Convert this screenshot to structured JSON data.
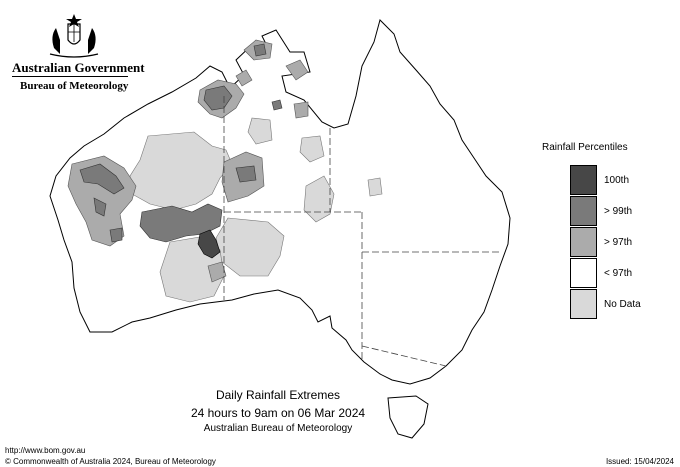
{
  "header": {
    "government": "Australian Government",
    "bureau": "Bureau of Meteorology"
  },
  "map": {
    "title": "Daily Rainfall Extremes",
    "period": "24 hours to 9am on 06 Mar 2024",
    "source": "Australian Bureau of Meteorology",
    "region": "Australia"
  },
  "legend": {
    "title": "Rainfall Percentiles",
    "items": [
      {
        "label": "100th",
        "color": "#474747"
      },
      {
        "label": "> 99th",
        "color": "#7a7a7a"
      },
      {
        "label": "> 97th",
        "color": "#ababab"
      },
      {
        "label": "< 97th",
        "color": "#ffffff"
      },
      {
        "label": "No Data",
        "color": "#d9d9d9"
      }
    ]
  },
  "footer": {
    "url": "http://www.bom.gov.au",
    "copyright": "© Commonwealth of Australia 2024, Bureau of Meteorology",
    "issued": "Issued: 15/04/2024"
  },
  "icons": [
    "coat-of-arms-icon"
  ]
}
